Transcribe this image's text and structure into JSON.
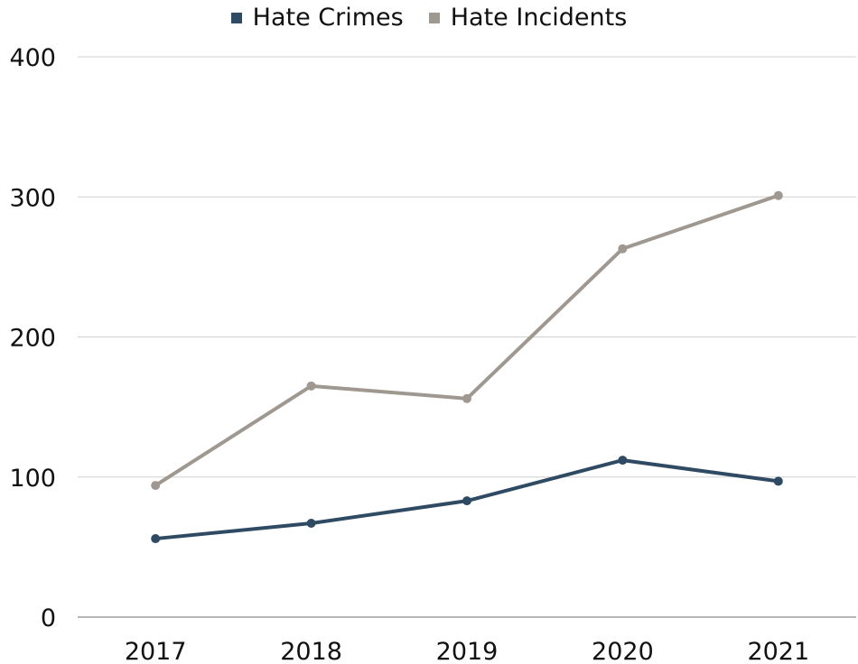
{
  "chart_data": {
    "type": "line",
    "categories": [
      "2017",
      "2018",
      "2019",
      "2020",
      "2021"
    ],
    "series": [
      {
        "name": "Hate Crimes",
        "values": [
          56,
          67,
          83,
          112,
          97
        ],
        "color": "#2f4b63"
      },
      {
        "name": "Hate Incidents",
        "values": [
          94,
          165,
          156,
          263,
          301
        ],
        "color": "#9e9890"
      }
    ],
    "y_ticks": [
      "0",
      "100",
      "200",
      "300",
      "400"
    ],
    "ylim": [
      0,
      400
    ],
    "grid": true,
    "legend_position": "top-center"
  }
}
